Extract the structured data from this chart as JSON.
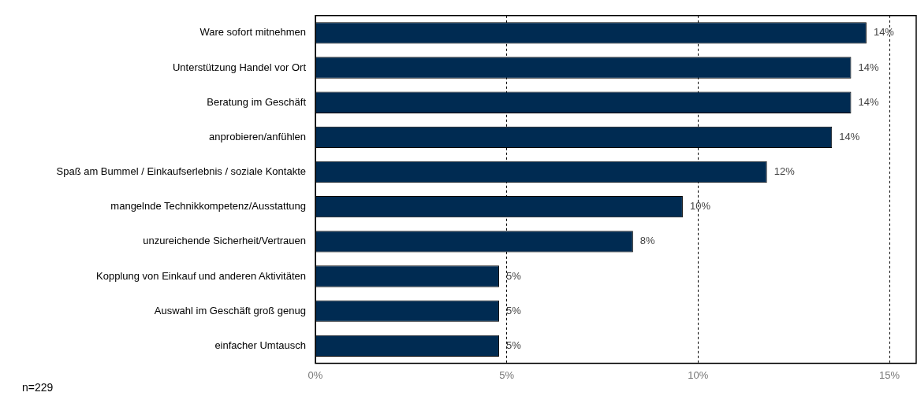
{
  "chart_data": {
    "type": "bar",
    "orientation": "horizontal",
    "categories": [
      "Ware sofort mitnehmen",
      "Unterstützung Handel vor Ort",
      "Beratung im Geschäft",
      "anprobieren/anfühlen",
      "Spaß am Bummel / Einkaufserlebnis / soziale Kontakte",
      "mangelnde Technikkompetenz/Ausstattung",
      "unzureichende Sicherheit/Vertrauen",
      "Kopplung von Einkauf und anderen Aktivitäten",
      "Auswahl im Geschäft groß genug",
      "einfacher Umtausch"
    ],
    "values": [
      14.4,
      14,
      14,
      13.5,
      11.8,
      9.6,
      8.3,
      4.8,
      4.8,
      4.8
    ],
    "value_labels": [
      "14%",
      "14%",
      "14%",
      "14%",
      "12%",
      "10%",
      "8%",
      "5%",
      "5%",
      "5%"
    ],
    "color": "#002b52",
    "xlim": [
      0,
      15.7
    ],
    "xticks": [
      {
        "value": 0,
        "label": "0%"
      },
      {
        "value": 5,
        "label": "5%"
      },
      {
        "value": 10,
        "label": "10%"
      },
      {
        "value": 15,
        "label": "15%"
      }
    ],
    "grid": "x",
    "legend": false,
    "annotations": [
      "n=229"
    ]
  }
}
